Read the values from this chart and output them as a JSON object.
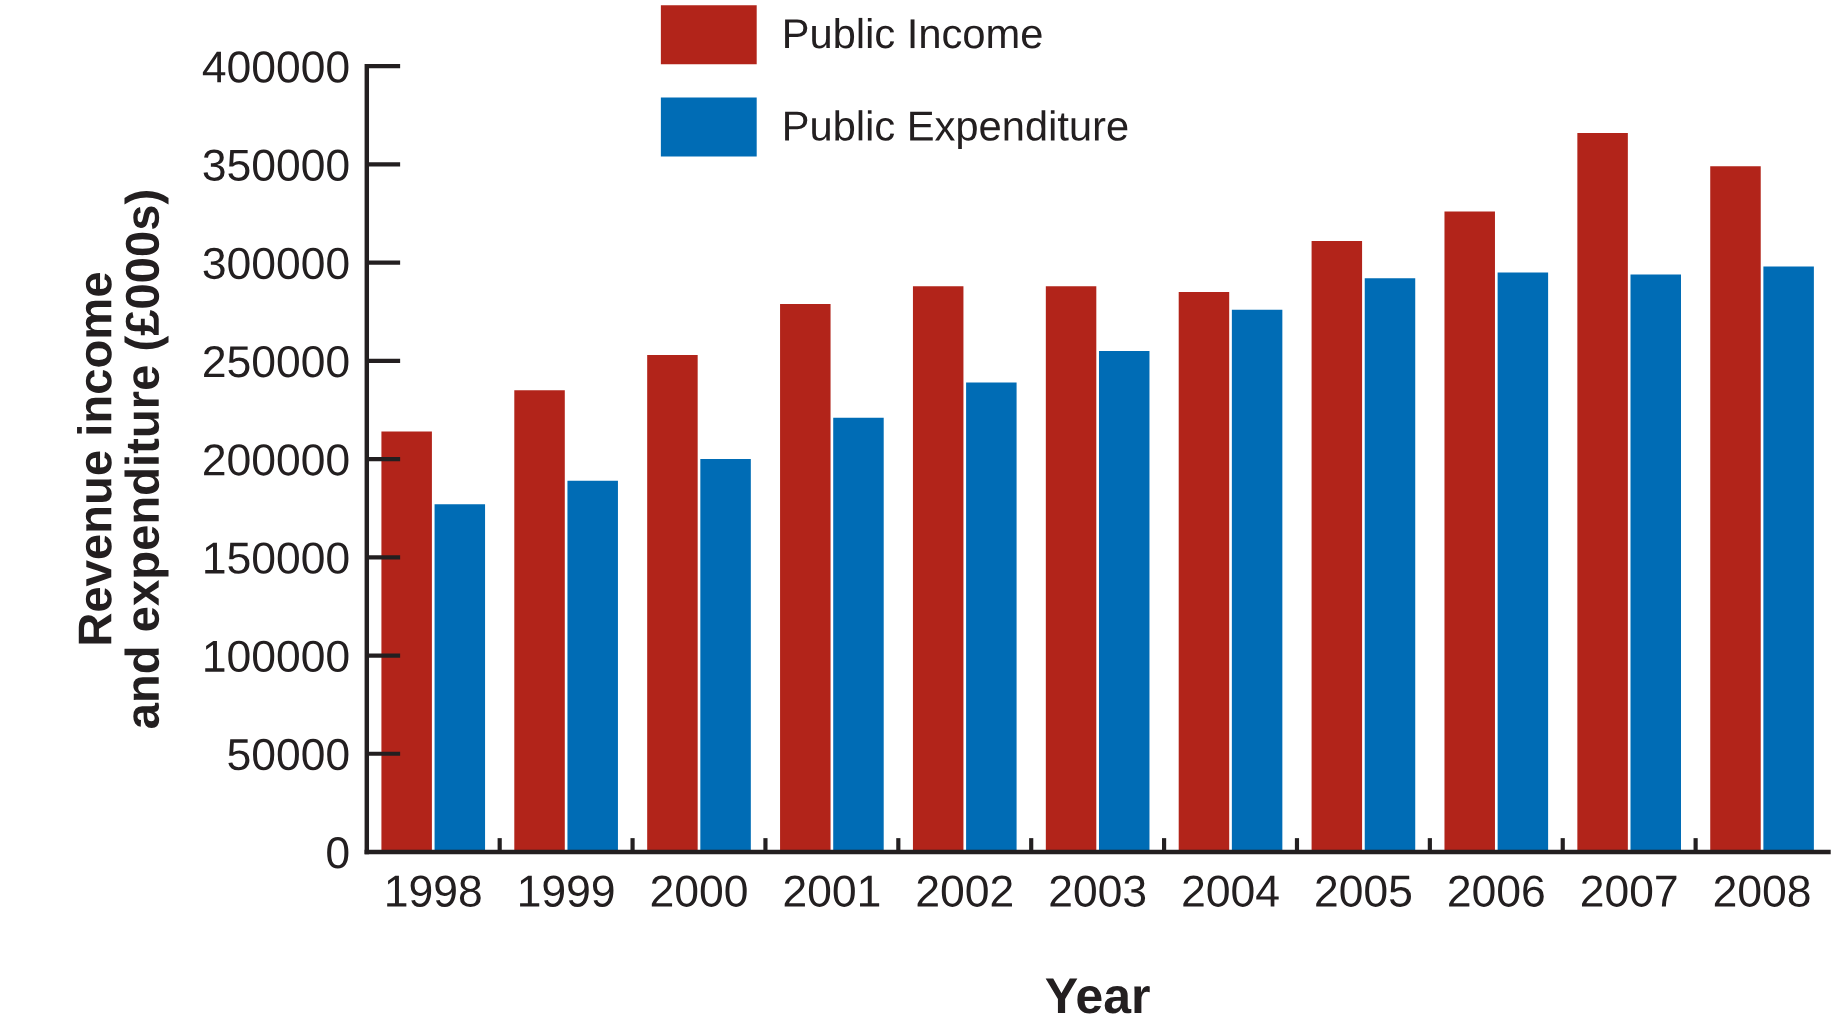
{
  "chart_data": {
    "type": "bar",
    "xlabel": "Year",
    "ylabel": "Revenue income\nand expenditure (£000s)",
    "categories": [
      "1998",
      "1999",
      "2000",
      "2001",
      "2002",
      "2003",
      "2004",
      "2005",
      "2006",
      "2007",
      "2008"
    ],
    "series": [
      {
        "name": "Public Income",
        "color": "#b2241a",
        "values": [
          214000,
          235000,
          253000,
          279000,
          288000,
          288000,
          285000,
          311000,
          326000,
          366000,
          349000
        ]
      },
      {
        "name": "Public Expenditure",
        "color": "#006cb5",
        "values": [
          177000,
          189000,
          200000,
          221000,
          239000,
          255000,
          276000,
          292000,
          295000,
          294000,
          298000
        ]
      }
    ],
    "ylim": [
      0,
      400000
    ],
    "yticks": [
      0,
      50000,
      100000,
      150000,
      200000,
      250000,
      300000,
      350000,
      400000
    ],
    "legend": "top",
    "grid": false
  }
}
